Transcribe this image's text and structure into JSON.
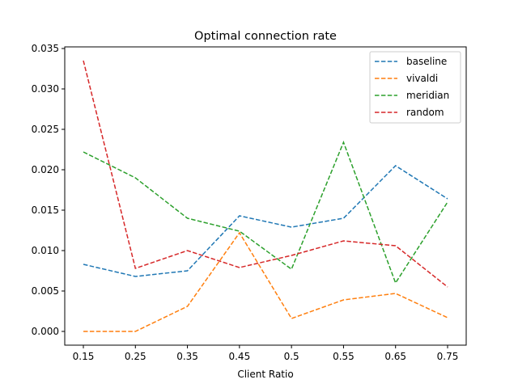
{
  "chart_data": {
    "type": "line",
    "title": "Optimal connection rate",
    "xlabel": "Client Ratio",
    "ylabel": "",
    "categories": [
      "0.15",
      "0.25",
      "0.35",
      "0.45",
      "0.5",
      "0.55",
      "0.65",
      "0.75"
    ],
    "yticks": [
      "0.000",
      "0.005",
      "0.010",
      "0.015",
      "0.020",
      "0.025",
      "0.030",
      "0.035"
    ],
    "ylim": [
      -0.0017,
      0.0352
    ],
    "grid": false,
    "legend_position": "top-right",
    "line_style": "dashed",
    "series": [
      {
        "name": "baseline",
        "color": "#1f77b4",
        "values": [
          0.0083,
          0.0068,
          0.0075,
          0.0143,
          0.0129,
          0.014,
          0.0205,
          0.0164
        ]
      },
      {
        "name": "vivaldi",
        "color": "#ff7f0e",
        "values": [
          0.0,
          0.0,
          0.0031,
          0.0122,
          0.0016,
          0.0039,
          0.0047,
          0.0017
        ]
      },
      {
        "name": "meridian",
        "color": "#2ca02c",
        "values": [
          0.0222,
          0.019,
          0.014,
          0.0124,
          0.0077,
          0.0234,
          0.006,
          0.016
        ]
      },
      {
        "name": "random",
        "color": "#d62728",
        "values": [
          0.0335,
          0.0078,
          0.01,
          0.0079,
          0.0094,
          0.0112,
          0.0106,
          0.0055
        ]
      }
    ]
  }
}
